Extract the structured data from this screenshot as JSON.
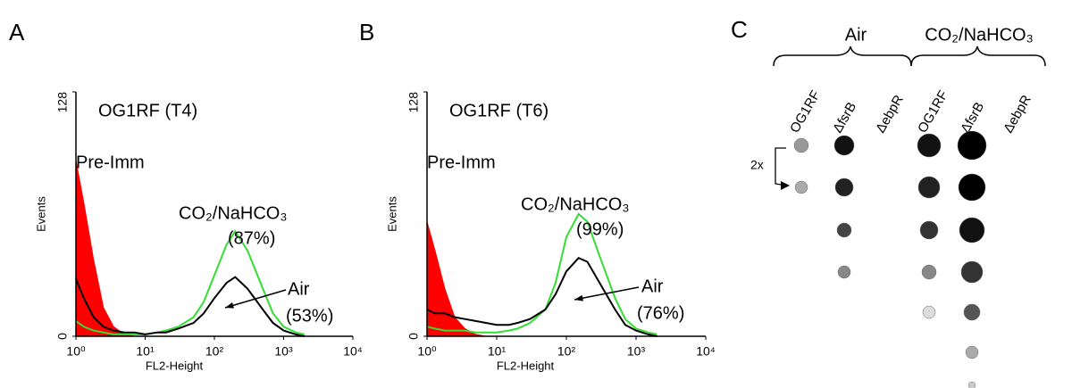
{
  "chart_data": [
    {
      "type": "histogram",
      "panel_label": "A",
      "annotations": [
        "OG1RF (T4)",
        "(87%)",
        "(53%)"
      ],
      "xlabel": "FL2-Height",
      "ylabel": "Events",
      "xscale": "log",
      "xlim": [
        1,
        10000
      ],
      "ylim": [
        0,
        128
      ],
      "xticks": [
        {
          "value": 1,
          "label": "10⁰"
        },
        {
          "value": 10,
          "label": "10¹"
        },
        {
          "value": 100,
          "label": "10²"
        },
        {
          "value": 1000,
          "label": "10³"
        },
        {
          "value": 10000,
          "label": "10⁴"
        }
      ],
      "yticks": [
        0,
        128
      ],
      "x": [
        1,
        1.3,
        1.8,
        2.5,
        3.5,
        5,
        7,
        10,
        15,
        20,
        30,
        50,
        70,
        100,
        150,
        200,
        300,
        500,
        700,
        1000,
        1500,
        2000
      ],
      "series": [
        {
          "name": "Pre-Imm",
          "color": "#ff0000",
          "filled": true,
          "values": [
            92,
            70,
            40,
            15,
            5,
            1,
            0,
            0,
            0,
            0,
            0,
            0,
            0,
            0,
            0,
            0,
            0,
            0,
            0,
            0,
            0,
            0
          ]
        },
        {
          "name": "CO₂/NaHCO₃",
          "color": "#33dd33",
          "filled": false,
          "values": [
            8,
            5,
            3,
            2,
            1,
            1,
            1,
            1,
            2,
            3,
            5,
            10,
            18,
            32,
            48,
            55,
            45,
            25,
            12,
            5,
            2,
            1
          ]
        },
        {
          "name": "Air",
          "color": "#000000",
          "filled": false,
          "values": [
            30,
            20,
            10,
            5,
            3,
            2,
            2,
            1,
            2,
            2,
            4,
            7,
            12,
            20,
            28,
            31,
            25,
            14,
            7,
            3,
            1,
            0
          ]
        }
      ]
    },
    {
      "type": "histogram",
      "panel_label": "B",
      "annotations": [
        "OG1RF (T6)",
        "(99%)",
        "(76%)"
      ],
      "xlabel": "FL2-Height",
      "ylabel": "Events",
      "xscale": "log",
      "xlim": [
        1,
        10000
      ],
      "ylim": [
        0,
        128
      ],
      "xticks": [
        {
          "value": 1,
          "label": "10⁰"
        },
        {
          "value": 10,
          "label": "10¹"
        },
        {
          "value": 100,
          "label": "10²"
        },
        {
          "value": 1000,
          "label": "10³"
        },
        {
          "value": 10000,
          "label": "10⁴"
        }
      ],
      "yticks": [
        0,
        128
      ],
      "x": [
        1,
        1.3,
        1.8,
        2.5,
        3.5,
        5,
        7,
        10,
        15,
        20,
        30,
        50,
        70,
        100,
        150,
        200,
        300,
        500,
        700,
        1000,
        1500,
        2000
      ],
      "series": [
        {
          "name": "Pre-Imm",
          "color": "#ff0000",
          "filled": true,
          "values": [
            60,
            45,
            25,
            10,
            4,
            1,
            0,
            0,
            0,
            0,
            0,
            0,
            0,
            0,
            0,
            0,
            0,
            0,
            0,
            0,
            0,
            0
          ]
        },
        {
          "name": "CO₂/NaHCO₃",
          "color": "#33dd33",
          "filled": false,
          "values": [
            5,
            4,
            3,
            3,
            3,
            2,
            2,
            2,
            3,
            4,
            7,
            14,
            28,
            52,
            64,
            60,
            42,
            20,
            9,
            4,
            2,
            1
          ]
        },
        {
          "name": "Air",
          "color": "#000000",
          "filled": false,
          "values": [
            14,
            12,
            12,
            10,
            9,
            8,
            7,
            6,
            6,
            7,
            9,
            14,
            22,
            34,
            41,
            39,
            28,
            14,
            6,
            3,
            1,
            0
          ]
        }
      ]
    }
  ],
  "panel_c": {
    "label": "C",
    "groups": [
      "Air",
      "CO₂/NaHCO₃"
    ],
    "columns": [
      "OG1RF",
      "ΔfsrB",
      "ΔebpR",
      "OG1RF",
      "ΔfsrB",
      "ΔebpR"
    ],
    "dilution": "2x"
  }
}
